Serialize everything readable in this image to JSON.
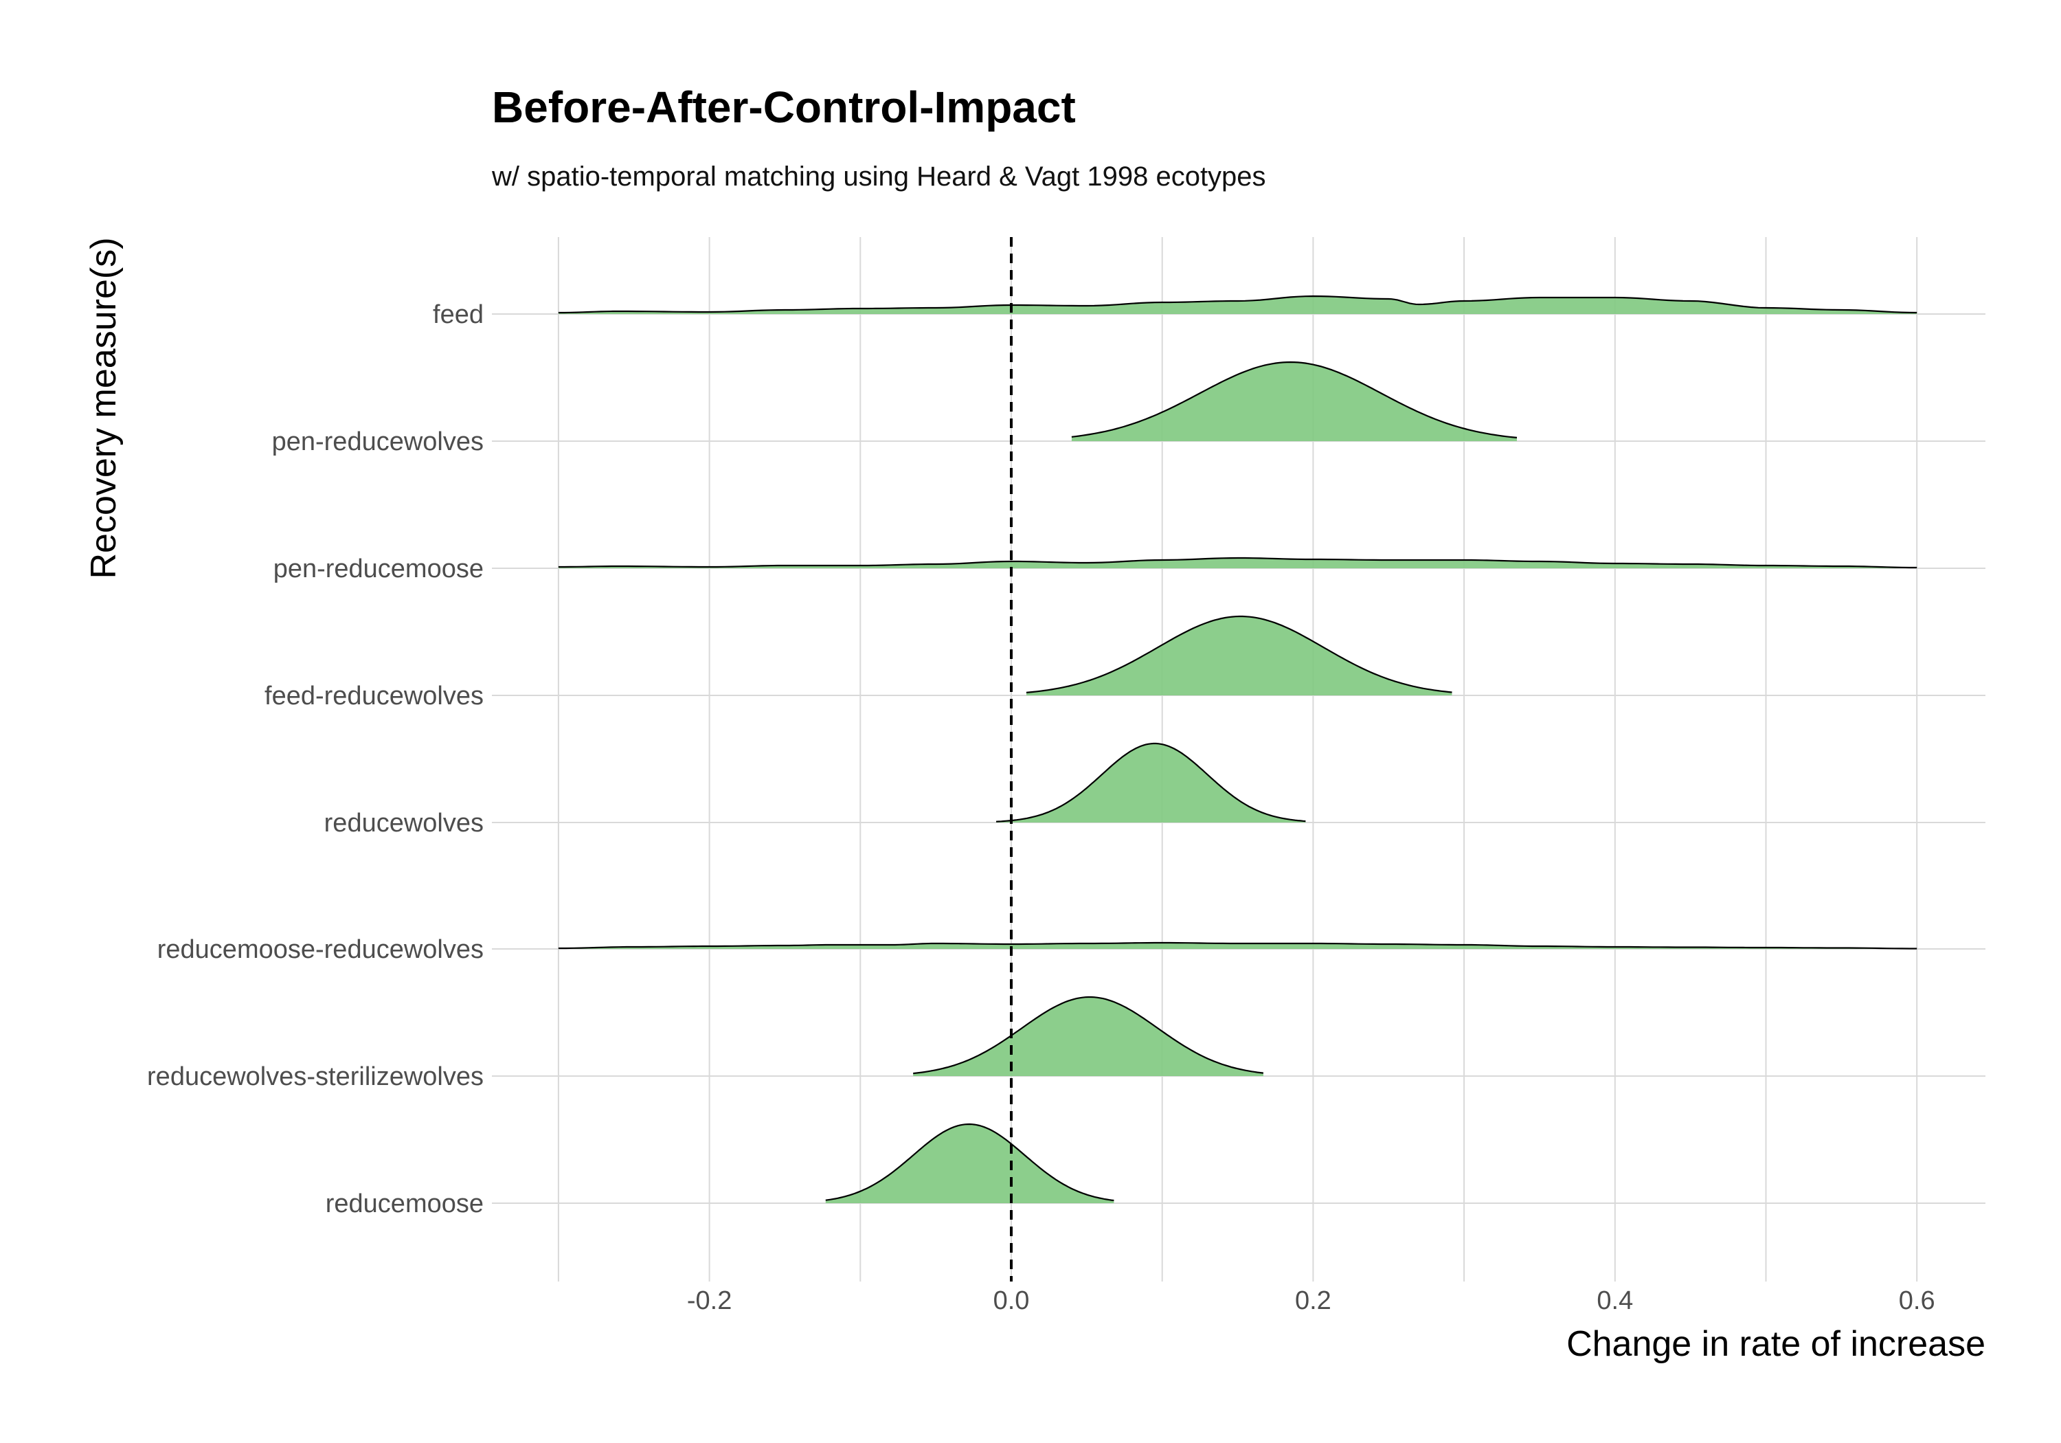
{
  "chart_data": {
    "type": "ridgeline",
    "title": "Before-After-Control-Impact",
    "subtitle": "w/ spatio-temporal matching using Heard & Vagt 1998 ecotypes",
    "xlabel": "Change in rate of increase",
    "ylabel": "Recovery measure(s)",
    "xlim": [
      -0.3,
      0.6
    ],
    "xticks": [
      "-0.2",
      "0.0",
      "0.2",
      "0.4",
      "0.6"
    ],
    "reference_line": {
      "x": 0.0,
      "style": "dashed"
    },
    "fill_color": "#7fc97f",
    "grid": true,
    "categories": [
      "feed",
      "pen-reducewolves",
      "pen-reducemoose",
      "feed-reducewolves",
      "reducewolves",
      "reducemoose-reducewolves",
      "reducewolves-sterilizewolves",
      "reducemoose"
    ],
    "series": [
      {
        "category": "feed",
        "range": [
          -0.3,
          0.6
        ],
        "mode": "flat",
        "points": [
          [
            -0.3,
            0.02
          ],
          [
            -0.26,
            0.04
          ],
          [
            -0.2,
            0.03
          ],
          [
            -0.15,
            0.06
          ],
          [
            -0.1,
            0.08
          ],
          [
            -0.05,
            0.09
          ],
          [
            0.0,
            0.13
          ],
          [
            0.05,
            0.12
          ],
          [
            0.1,
            0.17
          ],
          [
            0.15,
            0.19
          ],
          [
            0.2,
            0.26
          ],
          [
            0.25,
            0.22
          ],
          [
            0.27,
            0.14
          ],
          [
            0.3,
            0.19
          ],
          [
            0.35,
            0.24
          ],
          [
            0.4,
            0.24
          ],
          [
            0.45,
            0.19
          ],
          [
            0.5,
            0.09
          ],
          [
            0.55,
            0.06
          ],
          [
            0.6,
            0.02
          ]
        ]
      },
      {
        "category": "pen-reducewolves",
        "mode": "gauss",
        "mu": 0.185,
        "sigma": 0.06,
        "range": [
          0.04,
          0.335
        ]
      },
      {
        "category": "pen-reducemoose",
        "range": [
          -0.3,
          0.6
        ],
        "mode": "flat",
        "points": [
          [
            -0.3,
            0.02
          ],
          [
            -0.26,
            0.03
          ],
          [
            -0.2,
            0.02
          ],
          [
            -0.15,
            0.04
          ],
          [
            -0.1,
            0.04
          ],
          [
            -0.05,
            0.06
          ],
          [
            0.0,
            0.1
          ],
          [
            0.05,
            0.08
          ],
          [
            0.1,
            0.12
          ],
          [
            0.15,
            0.15
          ],
          [
            0.2,
            0.13
          ],
          [
            0.25,
            0.12
          ],
          [
            0.3,
            0.12
          ],
          [
            0.35,
            0.1
          ],
          [
            0.4,
            0.07
          ],
          [
            0.45,
            0.06
          ],
          [
            0.5,
            0.04
          ],
          [
            0.55,
            0.03
          ],
          [
            0.6,
            0.01
          ]
        ]
      },
      {
        "category": "feed-reducewolves",
        "mode": "gauss",
        "mu": 0.152,
        "sigma": 0.055,
        "range": [
          0.01,
          0.292
        ]
      },
      {
        "category": "reducewolves",
        "mode": "gauss",
        "mu": 0.095,
        "sigma": 0.035,
        "range": [
          -0.01,
          0.195
        ]
      },
      {
        "category": "reducemoose-reducewolves",
        "range": [
          -0.3,
          0.6
        ],
        "mode": "flat",
        "points": [
          [
            -0.3,
            0.01
          ],
          [
            -0.25,
            0.03
          ],
          [
            -0.2,
            0.04
          ],
          [
            -0.15,
            0.05
          ],
          [
            -0.12,
            0.06
          ],
          [
            -0.08,
            0.06
          ],
          [
            -0.05,
            0.08
          ],
          [
            0.0,
            0.07
          ],
          [
            0.05,
            0.08
          ],
          [
            0.1,
            0.09
          ],
          [
            0.15,
            0.08
          ],
          [
            0.2,
            0.08
          ],
          [
            0.25,
            0.07
          ],
          [
            0.3,
            0.06
          ],
          [
            0.35,
            0.04
          ],
          [
            0.4,
            0.03
          ],
          [
            0.45,
            0.025
          ],
          [
            0.5,
            0.02
          ],
          [
            0.55,
            0.015
          ],
          [
            0.6,
            0.005
          ]
        ]
      },
      {
        "category": "reducewolves-sterilizewolves",
        "mode": "gauss",
        "mu": 0.052,
        "sigma": 0.045,
        "range": [
          -0.065,
          0.167
        ]
      },
      {
        "category": "reducemoose",
        "mode": "gauss",
        "mu": -0.028,
        "sigma": 0.037,
        "range": [
          -0.123,
          0.068
        ]
      }
    ]
  }
}
